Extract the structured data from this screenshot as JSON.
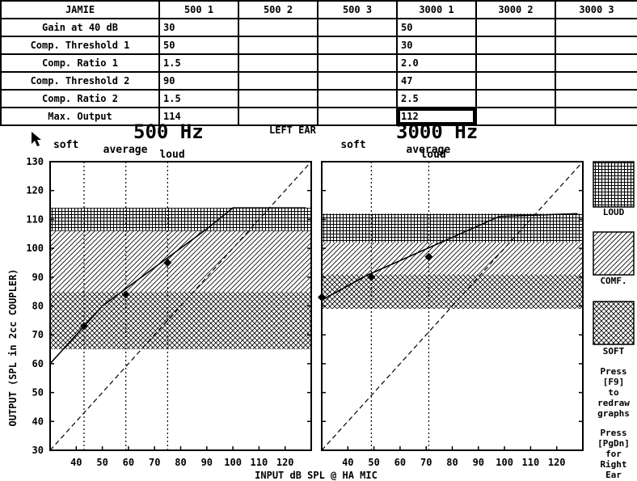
{
  "table": {
    "columns": [
      "JAMIE",
      "500 1",
      "500 2",
      "500 3",
      "3000 1",
      "3000 2",
      "3000 3"
    ],
    "rows": [
      {
        "label": "Gain at 40 dB",
        "values": [
          "30",
          "",
          "",
          "50",
          "",
          ""
        ]
      },
      {
        "label": "Comp. Threshold 1",
        "values": [
          "50",
          "",
          "",
          "30",
          "",
          ""
        ]
      },
      {
        "label": "Comp. Ratio 1",
        "values": [
          "1.5",
          "",
          "",
          "2.0",
          "",
          ""
        ]
      },
      {
        "label": "Comp. Threshold 2",
        "values": [
          "90",
          "",
          "",
          "47",
          "",
          ""
        ]
      },
      {
        "label": "Comp. Ratio 2",
        "values": [
          "1.5",
          "",
          "",
          "2.5",
          "",
          ""
        ]
      },
      {
        "label": "Max. Output",
        "values": [
          "114",
          "",
          "",
          "112",
          "",
          ""
        ]
      }
    ],
    "selected_cell": {
      "row": 5,
      "col": 4
    }
  },
  "header": {
    "left_freq": "500 Hz",
    "ear": "LEFT EAR",
    "right_freq": "3000 Hz"
  },
  "legend": {
    "loud": "LOUD",
    "comf": "COMF.",
    "soft": "SOFT"
  },
  "help": {
    "f9": [
      "Press",
      "[F9]",
      "to",
      "redraw",
      "graphs"
    ],
    "pgdn": [
      "Press",
      "[PgDn]",
      "for",
      "Right",
      "Ear"
    ]
  },
  "chart_data": [
    {
      "type": "line",
      "title": "500 Hz",
      "xlabel": "INPUT dB SPL @ HA MIC",
      "ylabel": "OUTPUT (SPL in 2cc COUPLER)",
      "xlim": [
        30,
        130
      ],
      "ylim": [
        30,
        130
      ],
      "x_ticks": [
        40,
        50,
        60,
        70,
        80,
        90,
        100,
        110,
        120
      ],
      "y_ticks": [
        30,
        40,
        50,
        60,
        70,
        80,
        90,
        100,
        110,
        120,
        130
      ],
      "markers": [
        {
          "label": "soft",
          "x": 43
        },
        {
          "label": "average",
          "x": 59
        },
        {
          "label": "loud",
          "x": 75
        }
      ],
      "bands": {
        "soft": [
          65,
          85
        ],
        "comf": [
          85,
          106
        ],
        "loud": [
          106,
          114
        ]
      },
      "io_curve": {
        "x": [
          30,
          50,
          90,
          100,
          128
        ],
        "y": [
          60,
          80,
          106.7,
          114,
          114
        ]
      },
      "points": {
        "x": [
          43,
          59,
          75
        ],
        "y": [
          73,
          84,
          95
        ]
      },
      "reference_line": {
        "x": [
          30,
          130
        ],
        "y": [
          30,
          130
        ]
      }
    },
    {
      "type": "line",
      "title": "3000 Hz",
      "xlabel": "INPUT dB SPL @ HA MIC",
      "ylabel": "OUTPUT (SPL in 2cc COUPLER)",
      "xlim": [
        30,
        130
      ],
      "ylim": [
        30,
        130
      ],
      "x_ticks": [
        40,
        50,
        60,
        70,
        80,
        90,
        100,
        110,
        120
      ],
      "y_ticks": [
        30,
        40,
        50,
        60,
        70,
        80,
        90,
        100,
        110,
        120,
        130
      ],
      "markers": [
        {
          "label": "soft",
          "x": 49
        },
        {
          "label": "average",
          "x": 71
        },
        {
          "label": "loud",
          "x": 71
        }
      ],
      "bands": {
        "soft": [
          79,
          91
        ],
        "comf": [
          91,
          102
        ],
        "loud": [
          102,
          112
        ]
      },
      "io_curve": {
        "x": [
          30,
          47,
          98,
          128
        ],
        "y": [
          82,
          90.5,
          111,
          112
        ]
      },
      "points": {
        "x": [
          30,
          49,
          71
        ],
        "y": [
          83,
          90,
          97
        ]
      },
      "reference_line": {
        "x": [
          30,
          130
        ],
        "y": [
          30,
          130
        ]
      }
    }
  ]
}
